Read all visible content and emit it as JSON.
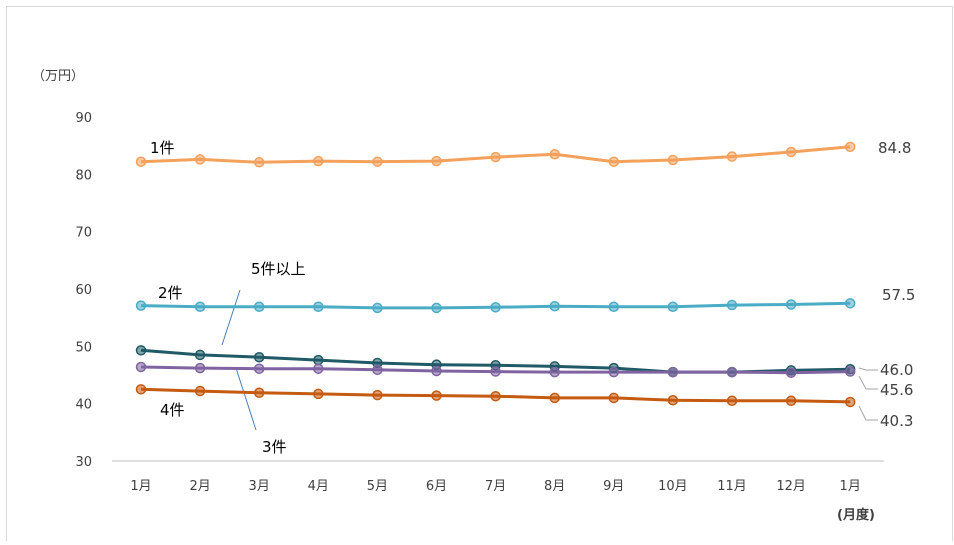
{
  "chart_data": {
    "type": "line",
    "y_unit": "（万円）",
    "x_unit": "(月度)",
    "ylim": [
      30,
      90
    ],
    "yticks": [
      30,
      40,
      50,
      60,
      70,
      80,
      90
    ],
    "grid": false,
    "categories": [
      "1月",
      "2月",
      "3月",
      "4月",
      "5月",
      "6月",
      "7月",
      "8月",
      "9月",
      "10月",
      "11月",
      "12月",
      "1月"
    ],
    "series": [
      {
        "name": "1件",
        "color": "#f4a15c",
        "end_label": "84.8",
        "values": [
          82.2,
          82.6,
          82.1,
          82.3,
          82.2,
          82.3,
          83.0,
          83.5,
          82.2,
          82.5,
          83.1,
          83.9,
          84.8
        ]
      },
      {
        "name": "2件",
        "color": "#4bacc6",
        "end_label": "57.5",
        "values": [
          57.1,
          56.9,
          56.9,
          56.9,
          56.7,
          56.7,
          56.8,
          57.0,
          56.9,
          56.9,
          57.2,
          57.3,
          57.5
        ]
      },
      {
        "name": "5件以上",
        "color": "#1f5a66",
        "end_label": "46.0",
        "values": [
          49.3,
          48.5,
          48.1,
          47.6,
          47.1,
          46.8,
          46.7,
          46.5,
          46.2,
          45.5,
          45.5,
          45.8,
          46.0
        ]
      },
      {
        "name": "3件",
        "color": "#8064a2",
        "end_label": "45.6",
        "values": [
          46.4,
          46.2,
          46.1,
          46.1,
          45.9,
          45.7,
          45.6,
          45.5,
          45.5,
          45.5,
          45.5,
          45.4,
          45.6
        ]
      },
      {
        "name": "4件",
        "color": "#c55a11",
        "end_label": "40.3",
        "values": [
          42.5,
          42.2,
          41.9,
          41.7,
          41.5,
          41.4,
          41.3,
          41.0,
          41.0,
          40.6,
          40.5,
          40.5,
          40.3
        ]
      }
    ]
  }
}
